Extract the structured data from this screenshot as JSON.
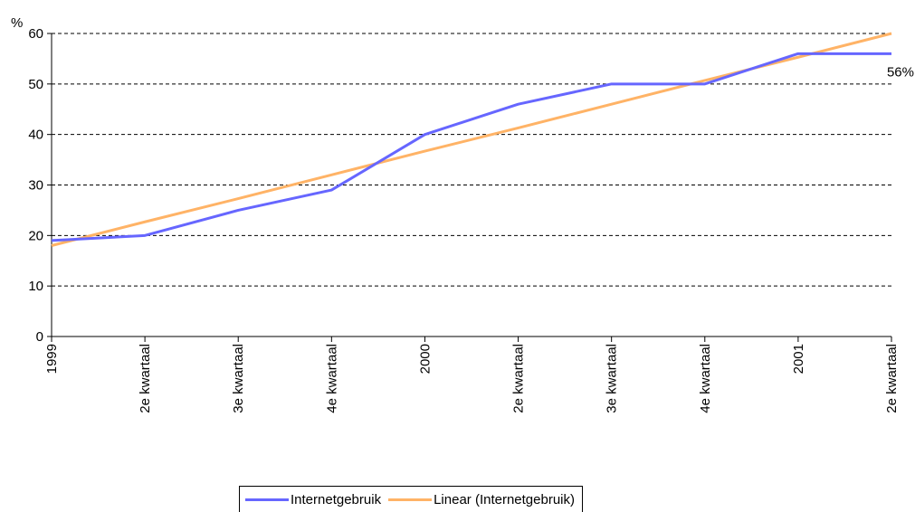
{
  "chart_data": {
    "type": "line",
    "ylabel": "%",
    "ylim": [
      0,
      60
    ],
    "yticks": [
      "0",
      "10",
      "20",
      "30",
      "40",
      "50",
      "60"
    ],
    "categories": [
      "1999",
      "2e kwartaal",
      "3e kwartaal",
      "4e kwartaal",
      "2000",
      "2e kwartaal",
      "3e kwartaal",
      "4e kwartaal",
      "2001",
      "2e kwartaal"
    ],
    "grid": true,
    "legend_position": "bottom",
    "series": [
      {
        "name": "Internetgebruik",
        "color": "#6666ff",
        "values": [
          19,
          20,
          25,
          29,
          40,
          46,
          50,
          50,
          56,
          56
        ]
      },
      {
        "name": "Linear (Internetgebruik)",
        "color": "#ffb366",
        "values": [
          18,
          22.7,
          27.3,
          32,
          36.7,
          41.3,
          46,
          50.7,
          55.3,
          60
        ]
      }
    ],
    "annotation": "56%"
  }
}
